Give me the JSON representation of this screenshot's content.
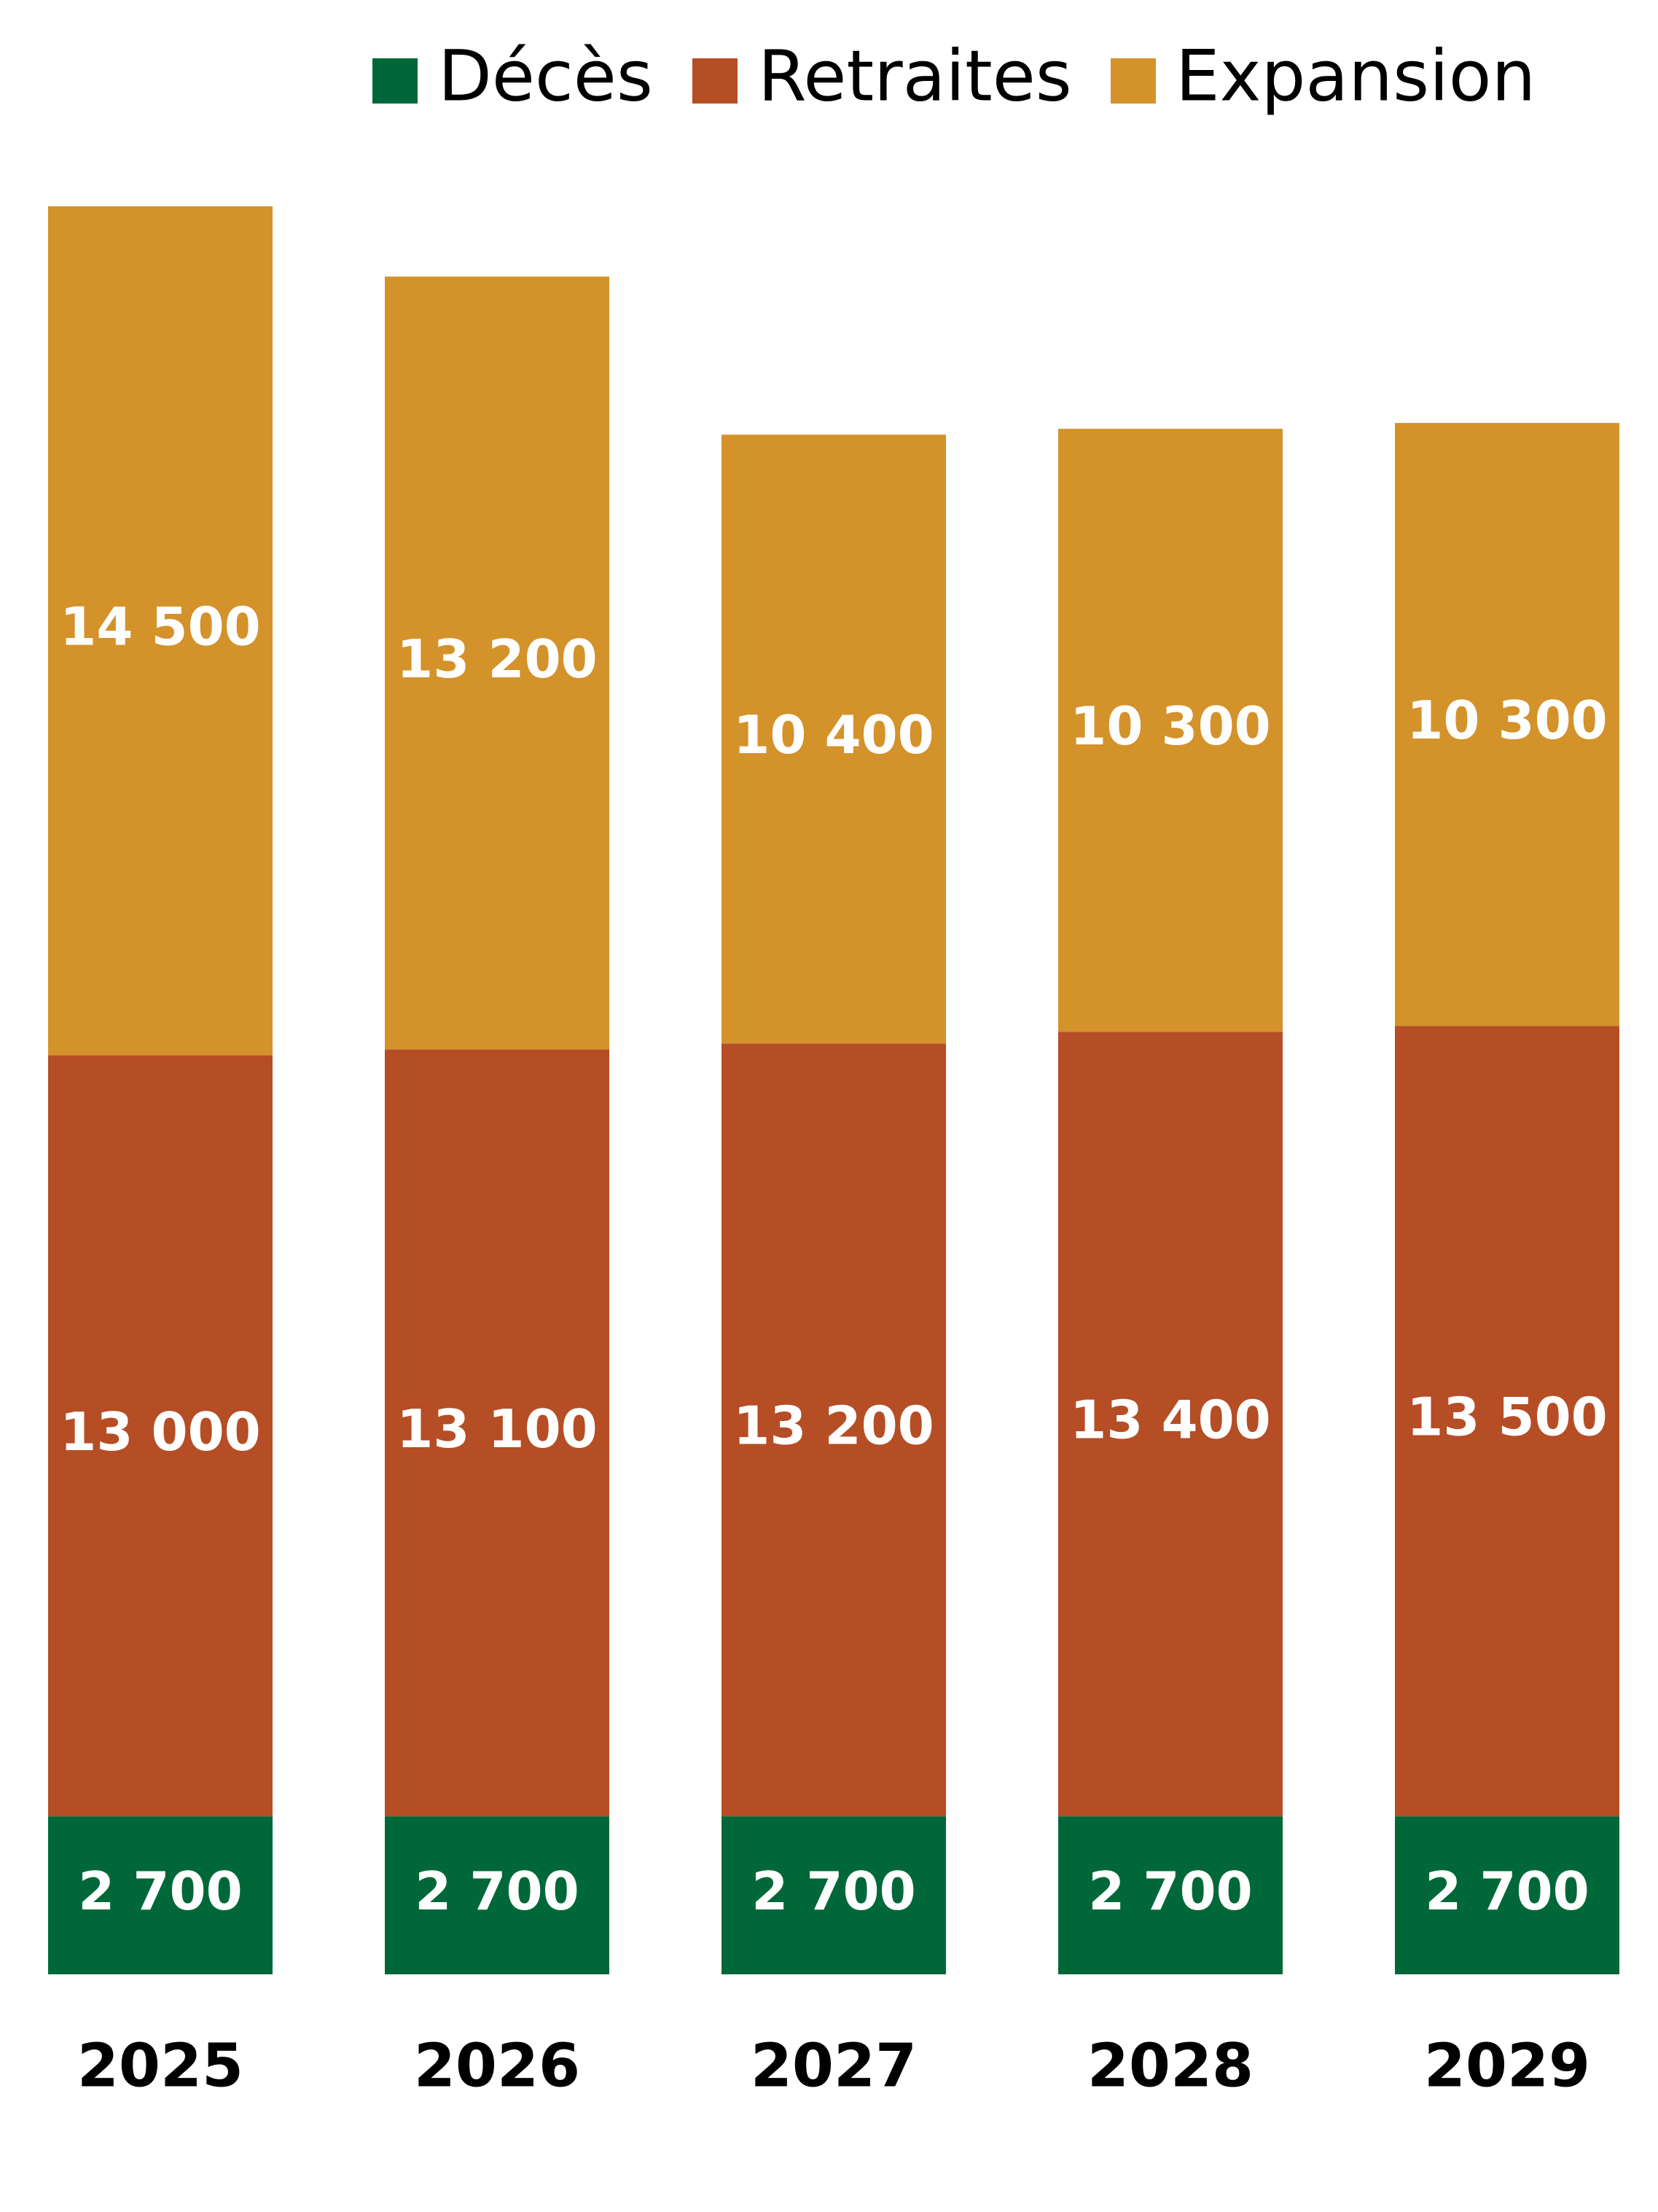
{
  "chart_data": {
    "type": "bar",
    "stacked": true,
    "categories": [
      "2025",
      "2026",
      "2027",
      "2028",
      "2029"
    ],
    "series": [
      {
        "name": "Décès",
        "color": "#006838",
        "values": [
          2700,
          2700,
          2700,
          2700,
          2700
        ],
        "value_labels": [
          "2 700",
          "2 700",
          "2 700",
          "2 700",
          "2 700"
        ]
      },
      {
        "name": "Retraites",
        "color": "#b54d25",
        "values": [
          13000,
          13100,
          13200,
          13400,
          13500
        ],
        "value_labels": [
          "13 000",
          "13 100",
          "13 200",
          "13 400",
          "13 500"
        ]
      },
      {
        "name": "Expansion",
        "color": "#d4922a",
        "values": [
          14500,
          13200,
          10400,
          10300,
          10300
        ],
        "value_labels": [
          "14 500",
          "13 200",
          "10 400",
          "10 300",
          "10 300"
        ]
      }
    ],
    "legend": "top"
  }
}
